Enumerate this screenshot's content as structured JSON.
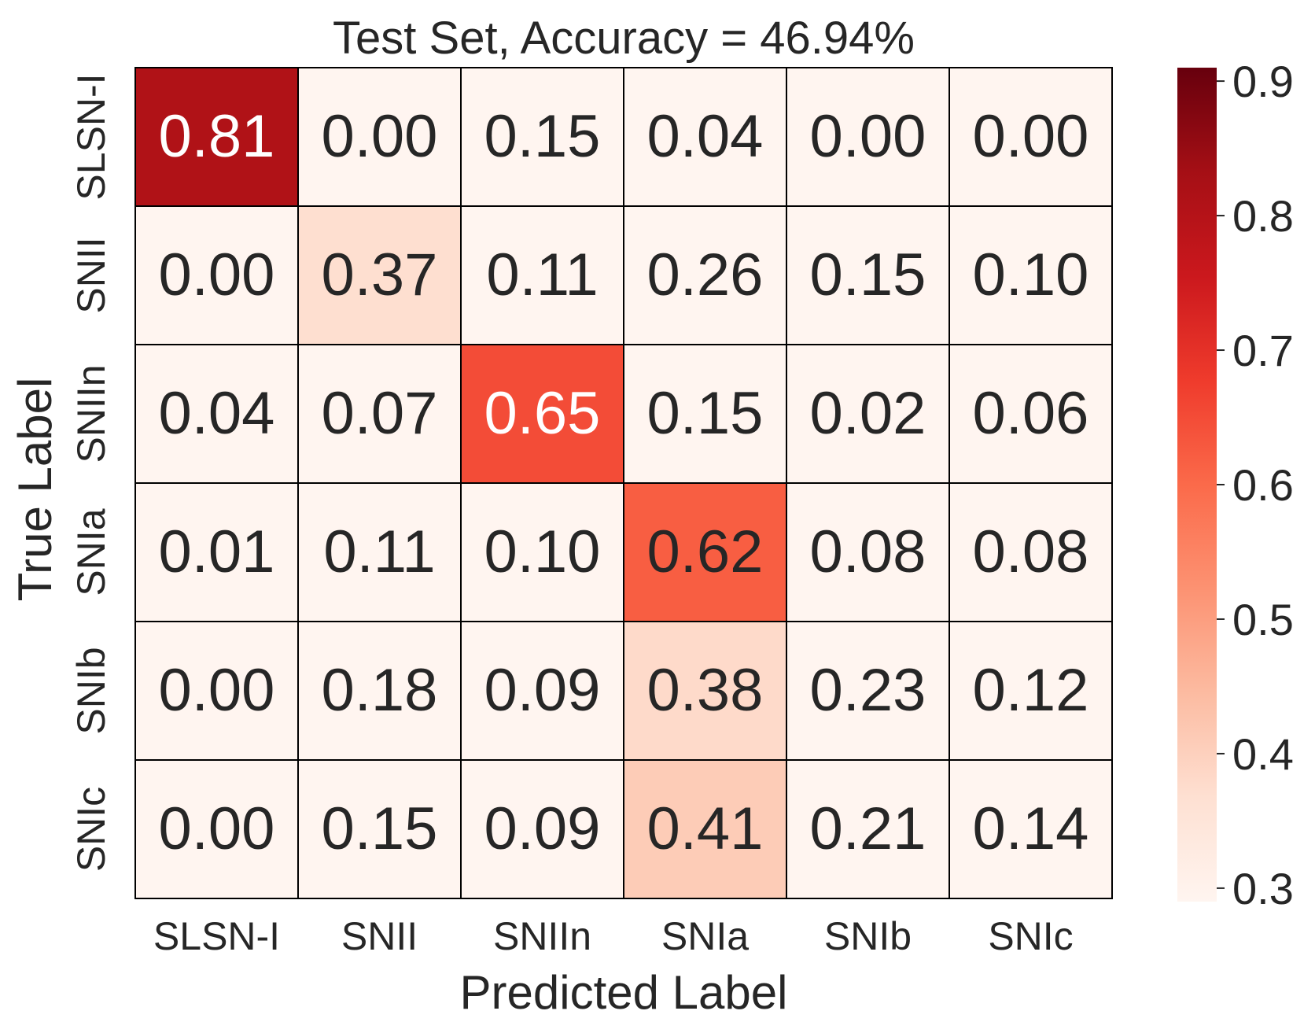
{
  "chart_data": {
    "type": "heatmap",
    "title": "Test Set, Accuracy = 46.94%",
    "xlabel": "Predicted Label",
    "ylabel": "True Label",
    "x_categories": [
      "SLSN-I",
      "SNII",
      "SNIIn",
      "SNIa",
      "SNIb",
      "SNIc"
    ],
    "y_categories": [
      "SLSN-I",
      "SNII",
      "SNIIn",
      "SNIa",
      "SNIb",
      "SNIc"
    ],
    "matrix": [
      [
        0.81,
        0.0,
        0.15,
        0.04,
        0.0,
        0.0
      ],
      [
        0.0,
        0.37,
        0.11,
        0.26,
        0.15,
        0.1
      ],
      [
        0.04,
        0.07,
        0.65,
        0.15,
        0.02,
        0.06
      ],
      [
        0.01,
        0.11,
        0.1,
        0.62,
        0.08,
        0.08
      ],
      [
        0.0,
        0.18,
        0.09,
        0.38,
        0.23,
        0.12
      ],
      [
        0.0,
        0.15,
        0.09,
        0.41,
        0.21,
        0.14
      ]
    ],
    "colorbar": {
      "colormap": "Reds",
      "vmin": 0.29,
      "vmax": 0.91,
      "ticks": [
        "0.3",
        "0.4",
        "0.5",
        "0.6",
        "0.7",
        "0.8",
        "0.9"
      ]
    }
  }
}
